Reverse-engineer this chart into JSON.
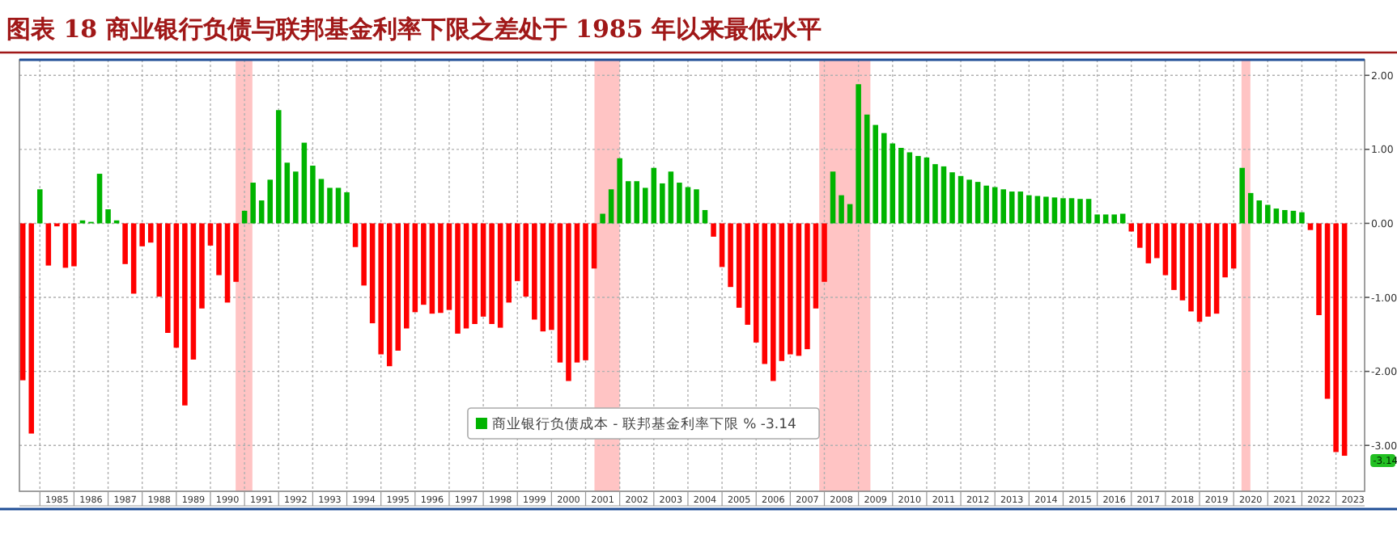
{
  "chart_data": {
    "type": "bar",
    "title": "图表 18  商业银行负债与联邦基金利率下限之差处于 1985 年以来最低水平",
    "xlim": [
      1984.4,
      2023.84
    ],
    "ylim": [
      -3.62,
      2.21
    ],
    "xticks": [
      {
        "value": 1985,
        "label": null
      },
      {
        "value": 1986,
        "label": null
      },
      {
        "value": 1987,
        "label": null
      },
      {
        "value": 1988,
        "label": null
      },
      {
        "value": 1989,
        "label": null
      },
      {
        "value": 1990,
        "label": null
      },
      {
        "value": 1991,
        "label": null
      },
      {
        "value": 1992,
        "label": null
      },
      {
        "value": 1993,
        "label": null
      },
      {
        "value": 1994,
        "label": null
      },
      {
        "value": 1995,
        "label": null
      },
      {
        "value": 1996,
        "label": null
      },
      {
        "value": 1997,
        "label": null
      },
      {
        "value": 1998,
        "label": null
      },
      {
        "value": 1999,
        "label": null
      },
      {
        "value": 2000,
        "label": null
      },
      {
        "value": 2001,
        "label": null
      },
      {
        "value": 2002,
        "label": null
      },
      {
        "value": 2003,
        "label": null
      },
      {
        "value": 2004,
        "label": null
      },
      {
        "value": 2005,
        "label": null
      },
      {
        "value": 2006,
        "label": null
      },
      {
        "value": 2007,
        "label": null
      },
      {
        "value": 2008,
        "label": null
      },
      {
        "value": 2009,
        "label": null
      },
      {
        "value": 2010,
        "label": null
      },
      {
        "value": 2011,
        "label": null
      },
      {
        "value": 2012,
        "label": null
      },
      {
        "value": 2013,
        "label": null
      },
      {
        "value": 2014,
        "label": null
      },
      {
        "value": 2015,
        "label": null
      },
      {
        "value": 2016,
        "label": null
      },
      {
        "value": 2017,
        "label": null
      },
      {
        "value": 2018,
        "label": null
      },
      {
        "value": 2019,
        "label": null
      },
      {
        "value": 2020,
        "label": null
      },
      {
        "value": 2021,
        "label": null
      },
      {
        "value": 2022,
        "label": null
      },
      {
        "value": 2023,
        "label": null
      },
      {
        "value": 1985.5,
        "label": "1985"
      },
      {
        "value": 1986.5,
        "label": "1986"
      },
      {
        "value": 1987.5,
        "label": "1987"
      },
      {
        "value": 1988.5,
        "label": "1988"
      },
      {
        "value": 1989.5,
        "label": "1989"
      },
      {
        "value": 1990.5,
        "label": "1990"
      },
      {
        "value": 1991.5,
        "label": "1991"
      },
      {
        "value": 1992.5,
        "label": "1992"
      },
      {
        "value": 1993.5,
        "label": "1993"
      },
      {
        "value": 1994.5,
        "label": "1994"
      },
      {
        "value": 1995.5,
        "label": "1995"
      },
      {
        "value": 1996.5,
        "label": "1996"
      },
      {
        "value": 1997.5,
        "label": "1997"
      },
      {
        "value": 1998.5,
        "label": "1998"
      },
      {
        "value": 1999.5,
        "label": "1999"
      },
      {
        "value": 2000.5,
        "label": "2000"
      },
      {
        "value": 2001.5,
        "label": "2001"
      },
      {
        "value": 2002.5,
        "label": "2002"
      },
      {
        "value": 2003.5,
        "label": "2003"
      },
      {
        "value": 2004.5,
        "label": "2004"
      },
      {
        "value": 2005.5,
        "label": "2005"
      },
      {
        "value": 2006.5,
        "label": "2006"
      },
      {
        "value": 2007.5,
        "label": "2007"
      },
      {
        "value": 2008.5,
        "label": "2008"
      },
      {
        "value": 2009.5,
        "label": "2009"
      },
      {
        "value": 2010.5,
        "label": "2010"
      },
      {
        "value": 2011.5,
        "label": "2011"
      },
      {
        "value": 2012.5,
        "label": "2012"
      },
      {
        "value": 2013.5,
        "label": "2013"
      },
      {
        "value": 2014.5,
        "label": "2014"
      },
      {
        "value": 2015.5,
        "label": "2015"
      },
      {
        "value": 2016.5,
        "label": "2016"
      },
      {
        "value": 2017.5,
        "label": "2017"
      },
      {
        "value": 2018.5,
        "label": "2018"
      },
      {
        "value": 2019.5,
        "label": "2019"
      },
      {
        "value": 2020.5,
        "label": "2020"
      },
      {
        "value": 2021.5,
        "label": "2021"
      },
      {
        "value": 2022.5,
        "label": "2022"
      },
      {
        "value": 2023.5,
        "label": "2023"
      }
    ],
    "yticks": [
      {
        "value": 2,
        "label": "2.00"
      },
      {
        "value": 1,
        "label": "1.00"
      },
      {
        "value": 0,
        "label": "0.00"
      },
      {
        "value": -1,
        "label": "-1.00"
      },
      {
        "value": -2,
        "label": "-2.00"
      },
      {
        "value": -3,
        "label": "-3.00"
      }
    ],
    "grid": true,
    "legend": "bottom",
    "bands": [
      {
        "axis": "x",
        "from": 1990.74,
        "to": 1991.23,
        "color": "#ffc4c4"
      },
      {
        "axis": "x",
        "from": 2001.26,
        "to": 2002.0,
        "color": "#ffc4c4"
      },
      {
        "axis": "x",
        "from": 2007.85,
        "to": 2009.35,
        "color": "#ffc4c4"
      },
      {
        "axis": "x",
        "from": 2020.23,
        "to": 2020.49,
        "color": "#ffc4c4"
      }
    ],
    "annotations": [
      {
        "text": "-3.14",
        "x": 2023.25,
        "y": -3.14
      }
    ],
    "series": [
      {
        "name": "商业银行负债成本 - 联邦基金利率下限 % -3.14",
        "x": [
          1984.5,
          1984.75,
          1985,
          1985.25,
          1985.5,
          1985.75,
          1986,
          1986.25,
          1986.5,
          1986.75,
          1987,
          1987.25,
          1987.5,
          1987.75,
          1988,
          1988.25,
          1988.5,
          1988.75,
          1989,
          1989.25,
          1989.5,
          1989.75,
          1990,
          1990.25,
          1990.5,
          1990.75,
          1991,
          1991.25,
          1991.5,
          1991.75,
          1992,
          1992.25,
          1992.5,
          1992.75,
          1993,
          1993.25,
          1993.5,
          1993.75,
          1994,
          1994.25,
          1994.5,
          1994.75,
          1995,
          1995.25,
          1995.5,
          1995.75,
          1996,
          1996.25,
          1996.5,
          1996.75,
          1997,
          1997.25,
          1997.5,
          1997.75,
          1998,
          1998.25,
          1998.5,
          1998.75,
          1999,
          1999.25,
          1999.5,
          1999.75,
          2000,
          2000.25,
          2000.5,
          2000.75,
          2001,
          2001.25,
          2001.5,
          2001.75,
          2002,
          2002.25,
          2002.5,
          2002.75,
          2003,
          2003.25,
          2003.5,
          2003.75,
          2004,
          2004.25,
          2004.5,
          2004.75,
          2005,
          2005.25,
          2005.5,
          2005.75,
          2006,
          2006.25,
          2006.5,
          2006.75,
          2007,
          2007.25,
          2007.5,
          2007.75,
          2008,
          2008.25,
          2008.5,
          2008.75,
          2009,
          2009.25,
          2009.5,
          2009.75,
          2010,
          2010.25,
          2010.5,
          2010.75,
          2011,
          2011.25,
          2011.5,
          2011.75,
          2012,
          2012.25,
          2012.5,
          2012.75,
          2013,
          2013.25,
          2013.5,
          2013.75,
          2014,
          2014.25,
          2014.5,
          2014.75,
          2015,
          2015.25,
          2015.5,
          2015.75,
          2016,
          2016.25,
          2016.5,
          2016.75,
          2017,
          2017.25,
          2017.5,
          2017.75,
          2018,
          2018.25,
          2018.5,
          2018.75,
          2019,
          2019.25,
          2019.5,
          2019.75,
          2020,
          2020.25,
          2020.5,
          2020.75,
          2021,
          2021.25,
          2021.5,
          2021.75,
          2022,
          2022.25,
          2022.5,
          2022.75,
          2023,
          2023.25
        ],
        "values": [
          -2.12,
          -2.84,
          0.46,
          -0.57,
          -0.04,
          -0.6,
          -0.58,
          0.04,
          0.02,
          0.67,
          0.19,
          0.04,
          -0.55,
          -0.95,
          -0.31,
          -0.26,
          -0.99,
          -1.48,
          -1.68,
          -2.46,
          -1.84,
          -1.15,
          -0.3,
          -0.7,
          -1.07,
          -0.79,
          0.17,
          0.55,
          0.31,
          0.59,
          1.53,
          0.82,
          0.7,
          1.09,
          0.78,
          0.6,
          0.48,
          0.48,
          0.42,
          -0.32,
          -0.84,
          -1.35,
          -1.77,
          -1.93,
          -1.72,
          -1.42,
          -1.2,
          -1.1,
          -1.22,
          -1.21,
          -1.17,
          -1.49,
          -1.42,
          -1.36,
          -1.26,
          -1.36,
          -1.41,
          -1.07,
          -0.78,
          -0.99,
          -1.3,
          -1.46,
          -1.44,
          -1.88,
          -2.13,
          -1.88,
          -1.85,
          -0.61,
          0.13,
          0.46,
          0.88,
          0.57,
          0.57,
          0.48,
          0.75,
          0.54,
          0.7,
          0.55,
          0.49,
          0.46,
          0.18,
          -0.18,
          -0.59,
          -0.86,
          -1.14,
          -1.37,
          -1.61,
          -1.9,
          -2.13,
          -1.86,
          -1.77,
          -1.79,
          -1.7,
          -1.15,
          -0.79,
          0.7,
          0.38,
          0.26,
          1.88,
          1.47,
          1.33,
          1.22,
          1.08,
          1.02,
          0.96,
          0.91,
          0.89,
          0.8,
          0.77,
          0.69,
          0.64,
          0.59,
          0.56,
          0.51,
          0.49,
          0.46,
          0.43,
          0.43,
          0.38,
          0.37,
          0.36,
          0.35,
          0.34,
          0.34,
          0.33,
          0.33,
          0.12,
          0.12,
          0.12,
          0.13,
          -0.11,
          -0.33,
          -0.54,
          -0.47,
          -0.7,
          -0.9,
          -1.04,
          -1.19,
          -1.33,
          -1.26,
          -1.22,
          -0.73,
          -0.61,
          0.75,
          0.41,
          0.31,
          0.25,
          0.2,
          0.18,
          0.17,
          0.15,
          -0.09,
          -1.24,
          -2.37,
          -3.09,
          -3.14
        ],
        "colors": [
          "#ff0000",
          "#ff0000",
          "#00b400",
          "#ff0000",
          "#ff0000",
          "#ff0000",
          "#ff0000",
          "#00b400",
          "#00b400",
          "#00b400",
          "#00b400",
          "#00b400",
          "#ff0000",
          "#ff0000",
          "#ff0000",
          "#ff0000",
          "#ff0000",
          "#ff0000",
          "#ff0000",
          "#ff0000",
          "#ff0000",
          "#ff0000",
          "#ff0000",
          "#ff0000",
          "#ff0000",
          "#ff0000",
          "#00b400",
          "#00b400",
          "#00b400",
          "#00b400",
          "#00b400",
          "#00b400",
          "#00b400",
          "#00b400",
          "#00b400",
          "#00b400",
          "#00b400",
          "#00b400",
          "#00b400",
          "#ff0000",
          "#ff0000",
          "#ff0000",
          "#ff0000",
          "#ff0000",
          "#ff0000",
          "#ff0000",
          "#ff0000",
          "#ff0000",
          "#ff0000",
          "#ff0000",
          "#ff0000",
          "#ff0000",
          "#ff0000",
          "#ff0000",
          "#ff0000",
          "#ff0000",
          "#ff0000",
          "#ff0000",
          "#ff0000",
          "#ff0000",
          "#ff0000",
          "#ff0000",
          "#ff0000",
          "#ff0000",
          "#ff0000",
          "#ff0000",
          "#ff0000",
          "#ff0000",
          "#00b400",
          "#00b400",
          "#00b400",
          "#00b400",
          "#00b400",
          "#00b400",
          "#00b400",
          "#00b400",
          "#00b400",
          "#00b400",
          "#00b400",
          "#00b400",
          "#00b400",
          "#ff0000",
          "#ff0000",
          "#ff0000",
          "#ff0000",
          "#ff0000",
          "#ff0000",
          "#ff0000",
          "#ff0000",
          "#ff0000",
          "#ff0000",
          "#ff0000",
          "#ff0000",
          "#ff0000",
          "#ff0000",
          "#00b400",
          "#00b400",
          "#00b400",
          "#00b400",
          "#00b400",
          "#00b400",
          "#00b400",
          "#00b400",
          "#00b400",
          "#00b400",
          "#00b400",
          "#00b400",
          "#00b400",
          "#00b400",
          "#00b400",
          "#00b400",
          "#00b400",
          "#00b400",
          "#00b400",
          "#00b400",
          "#00b400",
          "#00b400",
          "#00b400",
          "#00b400",
          "#00b400",
          "#00b400",
          "#00b400",
          "#00b400",
          "#00b400",
          "#00b400",
          "#00b400",
          "#00b400",
          "#00b400",
          "#00b400",
          "#00b400",
          "#ff0000",
          "#ff0000",
          "#ff0000",
          "#ff0000",
          "#ff0000",
          "#ff0000",
          "#ff0000",
          "#ff0000",
          "#ff0000",
          "#ff0000",
          "#ff0000",
          "#ff0000",
          "#ff0000",
          "#00b400",
          "#00b400",
          "#00b400",
          "#00b400",
          "#00b400",
          "#00b400",
          "#00b400",
          "#00b400",
          "#ff0000",
          "#ff0000",
          "#ff0000",
          "#ff0000",
          "#ff0000"
        ]
      }
    ]
  }
}
